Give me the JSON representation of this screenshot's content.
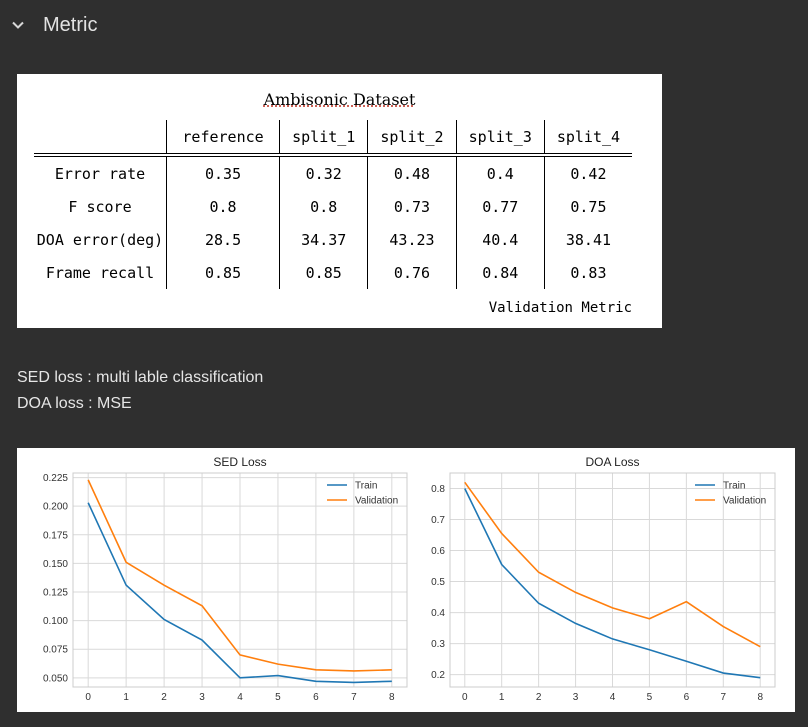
{
  "section": {
    "title": "Metric",
    "icon": "chevron-down-icon"
  },
  "table": {
    "title": "Ambisonic Dataset",
    "columns": [
      "reference",
      "split_1",
      "split_2",
      "split_3",
      "split_4"
    ],
    "rows": [
      {
        "label": "Error rate",
        "values": [
          "0.35",
          "0.32",
          "0.48",
          "0.4",
          "0.42"
        ]
      },
      {
        "label": "F score",
        "values": [
          "0.8",
          "0.8",
          "0.73",
          "0.77",
          "0.75"
        ]
      },
      {
        "label": "DOA error(deg)",
        "values": [
          "28.5",
          "34.37",
          "43.23",
          "40.4",
          "38.41"
        ]
      },
      {
        "label": "Frame recall",
        "values": [
          "0.85",
          "0.85",
          "0.76",
          "0.84",
          "0.83"
        ]
      }
    ],
    "footnote": "Validation Metric"
  },
  "description": {
    "sed": "SED loss : multi lable classification",
    "doa": "DOA loss : MSE"
  },
  "colors": {
    "train": "#1f77b4",
    "validation": "#ff7f0e"
  },
  "chart_data": [
    {
      "type": "line",
      "title": "SED Loss",
      "x": [
        0,
        1,
        2,
        3,
        4,
        5,
        6,
        7,
        8
      ],
      "series": [
        {
          "name": "Train",
          "values": [
            0.203,
            0.131,
            0.101,
            0.083,
            0.05,
            0.052,
            0.047,
            0.046,
            0.047
          ]
        },
        {
          "name": "Validation",
          "values": [
            0.223,
            0.151,
            0.131,
            0.113,
            0.07,
            0.062,
            0.057,
            0.056,
            0.057
          ]
        }
      ],
      "yticks": [
        "0.050",
        "0.075",
        "0.100",
        "0.125",
        "0.150",
        "0.175",
        "0.200",
        "0.225"
      ],
      "xticks": [
        "0",
        "1",
        "2",
        "3",
        "4",
        "5",
        "6",
        "7",
        "8"
      ],
      "ylim": [
        0.042,
        0.229
      ],
      "xlim": [
        -0.4,
        8.4
      ],
      "grid": true,
      "legend": "top-right"
    },
    {
      "type": "line",
      "title": "DOA Loss",
      "x": [
        0,
        1,
        2,
        3,
        4,
        5,
        6,
        7,
        8
      ],
      "series": [
        {
          "name": "Train",
          "values": [
            0.8,
            0.555,
            0.43,
            0.365,
            0.315,
            0.28,
            0.243,
            0.205,
            0.19
          ]
        },
        {
          "name": "Validation",
          "values": [
            0.82,
            0.655,
            0.53,
            0.465,
            0.415,
            0.38,
            0.435,
            0.355,
            0.29
          ]
        }
      ],
      "yticks": [
        "0.2",
        "0.3",
        "0.4",
        "0.5",
        "0.6",
        "0.7",
        "0.8"
      ],
      "xticks": [
        "0",
        "1",
        "2",
        "3",
        "4",
        "5",
        "6",
        "7",
        "8"
      ],
      "ylim": [
        0.16,
        0.85
      ],
      "xlim": [
        -0.4,
        8.4
      ],
      "grid": true,
      "legend": "top-right"
    }
  ]
}
